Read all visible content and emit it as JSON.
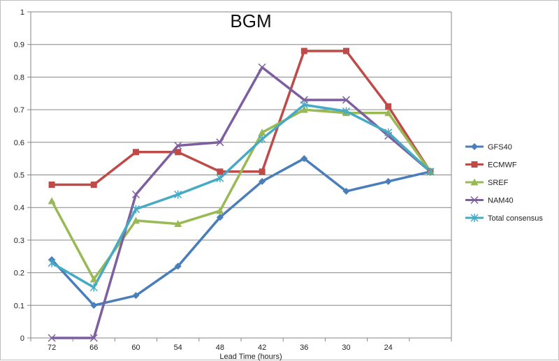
{
  "chart_data": {
    "type": "line",
    "title": "BGM",
    "xlabel": "Lead Time (hours)",
    "ylabel": "",
    "categories": [
      "72",
      "66",
      "60",
      "54",
      "48",
      "42",
      "36",
      "30",
      "24",
      ""
    ],
    "ylim": [
      0,
      1
    ],
    "yticks": [
      "0",
      "0.1",
      "0.2",
      "0.3",
      "0.4",
      "0.5",
      "0.6",
      "0.7",
      "0.8",
      "0.9",
      "1"
    ],
    "grid": true,
    "legend_position": "right",
    "series": [
      {
        "name": "GFS40",
        "color": "#4a7ebb",
        "marker": "diamond",
        "values": [
          0.24,
          0.1,
          0.13,
          0.22,
          0.37,
          0.48,
          0.55,
          0.45,
          0.48,
          0.51
        ]
      },
      {
        "name": "ECMWF",
        "color": "#be4b48",
        "marker": "square",
        "values": [
          0.47,
          0.47,
          0.57,
          0.57,
          0.51,
          0.51,
          0.88,
          0.88,
          0.71,
          0.51
        ]
      },
      {
        "name": "SREF",
        "color": "#98b954",
        "marker": "triangle",
        "values": [
          0.42,
          0.18,
          0.36,
          0.35,
          0.39,
          0.63,
          0.7,
          0.69,
          0.69,
          0.51
        ]
      },
      {
        "name": "NAM40",
        "color": "#7d5fa0",
        "marker": "x",
        "values": [
          0.0,
          0.0,
          0.44,
          0.59,
          0.6,
          0.83,
          0.73,
          0.73,
          0.62,
          0.51
        ]
      },
      {
        "name": "Total consensus",
        "color": "#46aac5",
        "marker": "star",
        "values": [
          0.23,
          0.155,
          0.395,
          0.44,
          0.49,
          0.61,
          0.715,
          0.695,
          0.63,
          0.51
        ]
      }
    ]
  }
}
